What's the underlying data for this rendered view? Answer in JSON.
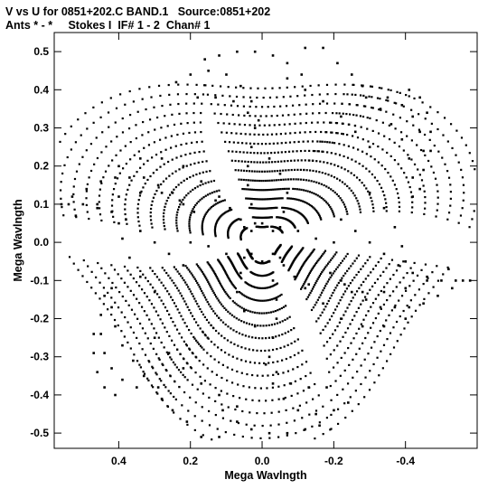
{
  "header": {
    "line1": "V vs U for 0851+202.C BAND.1   Source:0851+202",
    "line2": "Ants * - *     Stokes I  IF# 1 - 2  Chan# 1"
  },
  "chart_data": {
    "type": "scatter",
    "title": "V vs U for 0851+202.C BAND.1   Source:0851+202",
    "subtitle": "Ants * - *     Stokes I  IF# 1 - 2  Chan# 1",
    "xlabel": "Mega Wavlngth",
    "ylabel": "Mega Wavlngth",
    "xlim": [
      0.58,
      -0.6
    ],
    "ylim": [
      -0.54,
      0.55
    ],
    "x_ticks": [
      0.4,
      0.2,
      0.0,
      -0.2,
      -0.4
    ],
    "x_tick_labels": [
      "0.4",
      "0.2",
      "0.0",
      "-0.2",
      "-0.4"
    ],
    "y_ticks": [
      0.5,
      0.4,
      0.3,
      0.2,
      0.1,
      0.0,
      -0.1,
      -0.2,
      -0.3,
      -0.4,
      -0.5
    ],
    "y_tick_labels": [
      "0.5",
      "0.4",
      "0.3",
      "0.2",
      "0.1",
      "0.0",
      "-0.1",
      "-0.2",
      "-0.3",
      "-0.4",
      "-0.5"
    ],
    "grid": false,
    "marker_color": "#000000",
    "description_of_coverage": "uv-plane coverage: dense pinwheel of elliptical arc tracks (baselines), point-symmetric about origin, extending to about |u|=0.58 and |v|=0.52",
    "series": [
      {
        "points": [
          [
            0.56,
            0.1
          ],
          [
            0.53,
            0.12
          ],
          [
            0.49,
            0.14
          ],
          [
            0.45,
            0.16
          ],
          [
            0.41,
            0.17
          ],
          [
            0.37,
            0.17
          ],
          [
            0.33,
            0.17
          ],
          [
            0.29,
            0.15
          ],
          [
            0.25,
            0.13
          ],
          [
            0.22,
            0.1
          ],
          [
            0.52,
            0.07
          ],
          [
            0.46,
            0.1
          ],
          [
            0.4,
            0.12
          ],
          [
            0.34,
            0.13
          ],
          [
            0.28,
            0.13
          ],
          [
            0.23,
            0.11
          ],
          [
            0.19,
            0.08
          ],
          [
            0.4,
            0.2
          ],
          [
            0.34,
            0.22
          ],
          [
            0.28,
            0.22
          ],
          [
            0.22,
            0.2
          ],
          [
            0.17,
            0.16
          ],
          [
            0.13,
            0.11
          ],
          [
            0.24,
            0.42
          ],
          [
            0.2,
            0.44
          ],
          [
            0.15,
            0.45
          ],
          [
            0.1,
            0.44
          ],
          [
            0.06,
            0.41
          ],
          [
            0.03,
            0.37
          ],
          [
            0.01,
            0.32
          ],
          [
            0.18,
            0.38
          ],
          [
            0.13,
            0.38
          ],
          [
            0.08,
            0.37
          ],
          [
            0.04,
            0.34
          ],
          [
            0.02,
            0.3
          ],
          [
            0.16,
            0.48
          ],
          [
            0.12,
            0.49
          ],
          [
            0.07,
            0.5
          ],
          [
            0.02,
            0.5
          ],
          [
            -0.03,
            0.49
          ],
          [
            -0.07,
            0.47
          ],
          [
            -0.11,
            0.44
          ],
          [
            -0.17,
            0.51
          ],
          [
            -0.12,
            0.51
          ],
          [
            -0.21,
            0.47
          ],
          [
            -0.25,
            0.44
          ],
          [
            -0.28,
            0.41
          ],
          [
            -0.07,
            0.43
          ],
          [
            -0.12,
            0.4
          ],
          [
            -0.17,
            0.37
          ],
          [
            -0.22,
            0.33
          ],
          [
            -0.26,
            0.29
          ],
          [
            -0.3,
            0.25
          ],
          [
            -0.29,
            0.38
          ],
          [
            -0.33,
            0.35
          ],
          [
            -0.36,
            0.31
          ],
          [
            -0.39,
            0.27
          ],
          [
            -0.41,
            0.22
          ],
          [
            -0.42,
            0.17
          ],
          [
            -0.42,
            0.12
          ],
          [
            -0.35,
            0.38
          ],
          [
            -0.39,
            0.36
          ],
          [
            -0.42,
            0.33
          ],
          [
            -0.44,
            0.29
          ],
          [
            -0.45,
            0.24
          ],
          [
            -0.45,
            0.19
          ],
          [
            -0.44,
            0.14
          ],
          [
            -0.41,
            0.4
          ],
          [
            -0.44,
            0.38
          ],
          [
            -0.46,
            0.34
          ],
          [
            -0.47,
            0.29
          ],
          [
            -0.47,
            0.24
          ],
          [
            -0.3,
            0.13
          ],
          [
            -0.34,
            0.09
          ],
          [
            -0.37,
            0.04
          ],
          [
            -0.39,
            -0.01
          ],
          [
            -0.4,
            -0.05
          ],
          [
            -0.22,
            0.06
          ],
          [
            -0.26,
            0.03
          ],
          [
            -0.3,
            0.0
          ],
          [
            -0.34,
            -0.03
          ],
          [
            -0.38,
            -0.06
          ],
          [
            -0.42,
            -0.08
          ],
          [
            -0.46,
            -0.09
          ],
          [
            -0.5,
            -0.1
          ],
          [
            -0.54,
            -0.1
          ],
          [
            -0.58,
            -0.1
          ],
          [
            -0.56,
            -0.1
          ],
          [
            -0.53,
            -0.12
          ],
          [
            -0.49,
            -0.14
          ],
          [
            -0.45,
            -0.16
          ],
          [
            -0.41,
            -0.17
          ],
          [
            -0.37,
            -0.17
          ],
          [
            -0.33,
            -0.17
          ],
          [
            -0.29,
            -0.15
          ],
          [
            -0.25,
            -0.13
          ],
          [
            -0.22,
            -0.1
          ],
          [
            -0.52,
            -0.07
          ],
          [
            -0.46,
            -0.1
          ],
          [
            -0.4,
            -0.12
          ],
          [
            -0.34,
            -0.13
          ],
          [
            -0.28,
            -0.13
          ],
          [
            -0.23,
            -0.11
          ],
          [
            -0.19,
            -0.08
          ],
          [
            -0.4,
            -0.2
          ],
          [
            -0.34,
            -0.22
          ],
          [
            -0.28,
            -0.22
          ],
          [
            -0.22,
            -0.2
          ],
          [
            -0.17,
            -0.16
          ],
          [
            -0.13,
            -0.11
          ],
          [
            -0.24,
            -0.42
          ],
          [
            -0.2,
            -0.44
          ],
          [
            -0.15,
            -0.45
          ],
          [
            -0.1,
            -0.44
          ],
          [
            -0.06,
            -0.41
          ],
          [
            -0.03,
            -0.37
          ],
          [
            -0.01,
            -0.32
          ],
          [
            -0.18,
            -0.38
          ],
          [
            -0.13,
            -0.38
          ],
          [
            -0.08,
            -0.37
          ],
          [
            -0.04,
            -0.34
          ],
          [
            -0.02,
            -0.3
          ],
          [
            -0.16,
            -0.48
          ],
          [
            -0.12,
            -0.49
          ],
          [
            -0.07,
            -0.5
          ],
          [
            -0.02,
            -0.5
          ],
          [
            0.03,
            -0.49
          ],
          [
            0.07,
            -0.47
          ],
          [
            0.11,
            -0.44
          ],
          [
            0.17,
            -0.51
          ],
          [
            0.12,
            -0.51
          ],
          [
            0.21,
            -0.47
          ],
          [
            0.25,
            -0.44
          ],
          [
            0.28,
            -0.41
          ],
          [
            0.07,
            -0.43
          ],
          [
            0.12,
            -0.4
          ],
          [
            0.17,
            -0.37
          ],
          [
            0.22,
            -0.33
          ],
          [
            0.26,
            -0.29
          ],
          [
            0.3,
            -0.25
          ],
          [
            0.29,
            -0.38
          ],
          [
            0.33,
            -0.35
          ],
          [
            0.36,
            -0.31
          ],
          [
            0.39,
            -0.27
          ],
          [
            0.41,
            -0.22
          ],
          [
            0.42,
            -0.17
          ],
          [
            0.42,
            -0.12
          ],
          [
            0.35,
            -0.38
          ],
          [
            0.39,
            -0.36
          ],
          [
            0.42,
            -0.33
          ],
          [
            0.44,
            -0.29
          ],
          [
            0.45,
            -0.24
          ],
          [
            0.45,
            -0.19
          ],
          [
            0.44,
            -0.14
          ],
          [
            0.41,
            -0.4
          ],
          [
            0.44,
            -0.38
          ],
          [
            0.46,
            -0.34
          ],
          [
            0.47,
            -0.29
          ],
          [
            0.47,
            -0.24
          ],
          [
            0.3,
            -0.13
          ],
          [
            0.34,
            -0.09
          ],
          [
            0.37,
            -0.04
          ],
          [
            0.39,
            0.01
          ],
          [
            0.4,
            0.05
          ],
          [
            0.22,
            -0.06
          ],
          [
            0.26,
            -0.03
          ],
          [
            0.3,
            0.0
          ],
          [
            0.34,
            0.03
          ],
          [
            0.38,
            0.06
          ],
          [
            0.42,
            0.08
          ],
          [
            0.46,
            0.09
          ],
          [
            0.5,
            0.1
          ],
          [
            0.54,
            0.1
          ],
          [
            0.2,
            0.0
          ],
          [
            0.15,
            -0.01
          ],
          [
            0.1,
            -0.03
          ],
          [
            0.05,
            -0.04
          ],
          [
            0.0,
            -0.05
          ],
          [
            -0.05,
            -0.04
          ],
          [
            -0.2,
            0.0
          ],
          [
            -0.15,
            0.01
          ],
          [
            -0.1,
            0.03
          ],
          [
            -0.05,
            0.04
          ],
          [
            0.0,
            0.05
          ],
          [
            0.05,
            0.04
          ],
          [
            0.03,
            0.25
          ],
          [
            0.04,
            0.2
          ],
          [
            0.04,
            0.15
          ],
          [
            0.03,
            0.1
          ],
          [
            0.02,
            0.05
          ],
          [
            -0.03,
            -0.25
          ],
          [
            -0.04,
            -0.2
          ],
          [
            -0.04,
            -0.15
          ],
          [
            -0.03,
            -0.1
          ],
          [
            -0.02,
            -0.05
          ],
          [
            -0.02,
            0.22
          ],
          [
            -0.05,
            0.18
          ],
          [
            -0.07,
            0.13
          ],
          [
            -0.06,
            0.08
          ],
          [
            -0.03,
            0.03
          ],
          [
            0.02,
            -0.22
          ],
          [
            0.05,
            -0.18
          ],
          [
            0.07,
            -0.13
          ],
          [
            0.06,
            -0.08
          ],
          [
            0.03,
            -0.03
          ],
          [
            0.12,
            0.12
          ],
          [
            0.09,
            0.09
          ],
          [
            0.06,
            0.06
          ],
          [
            0.03,
            0.03
          ],
          [
            -0.12,
            -0.12
          ],
          [
            -0.09,
            -0.09
          ],
          [
            -0.06,
            -0.06
          ],
          [
            -0.03,
            -0.03
          ]
        ]
      }
    ]
  }
}
